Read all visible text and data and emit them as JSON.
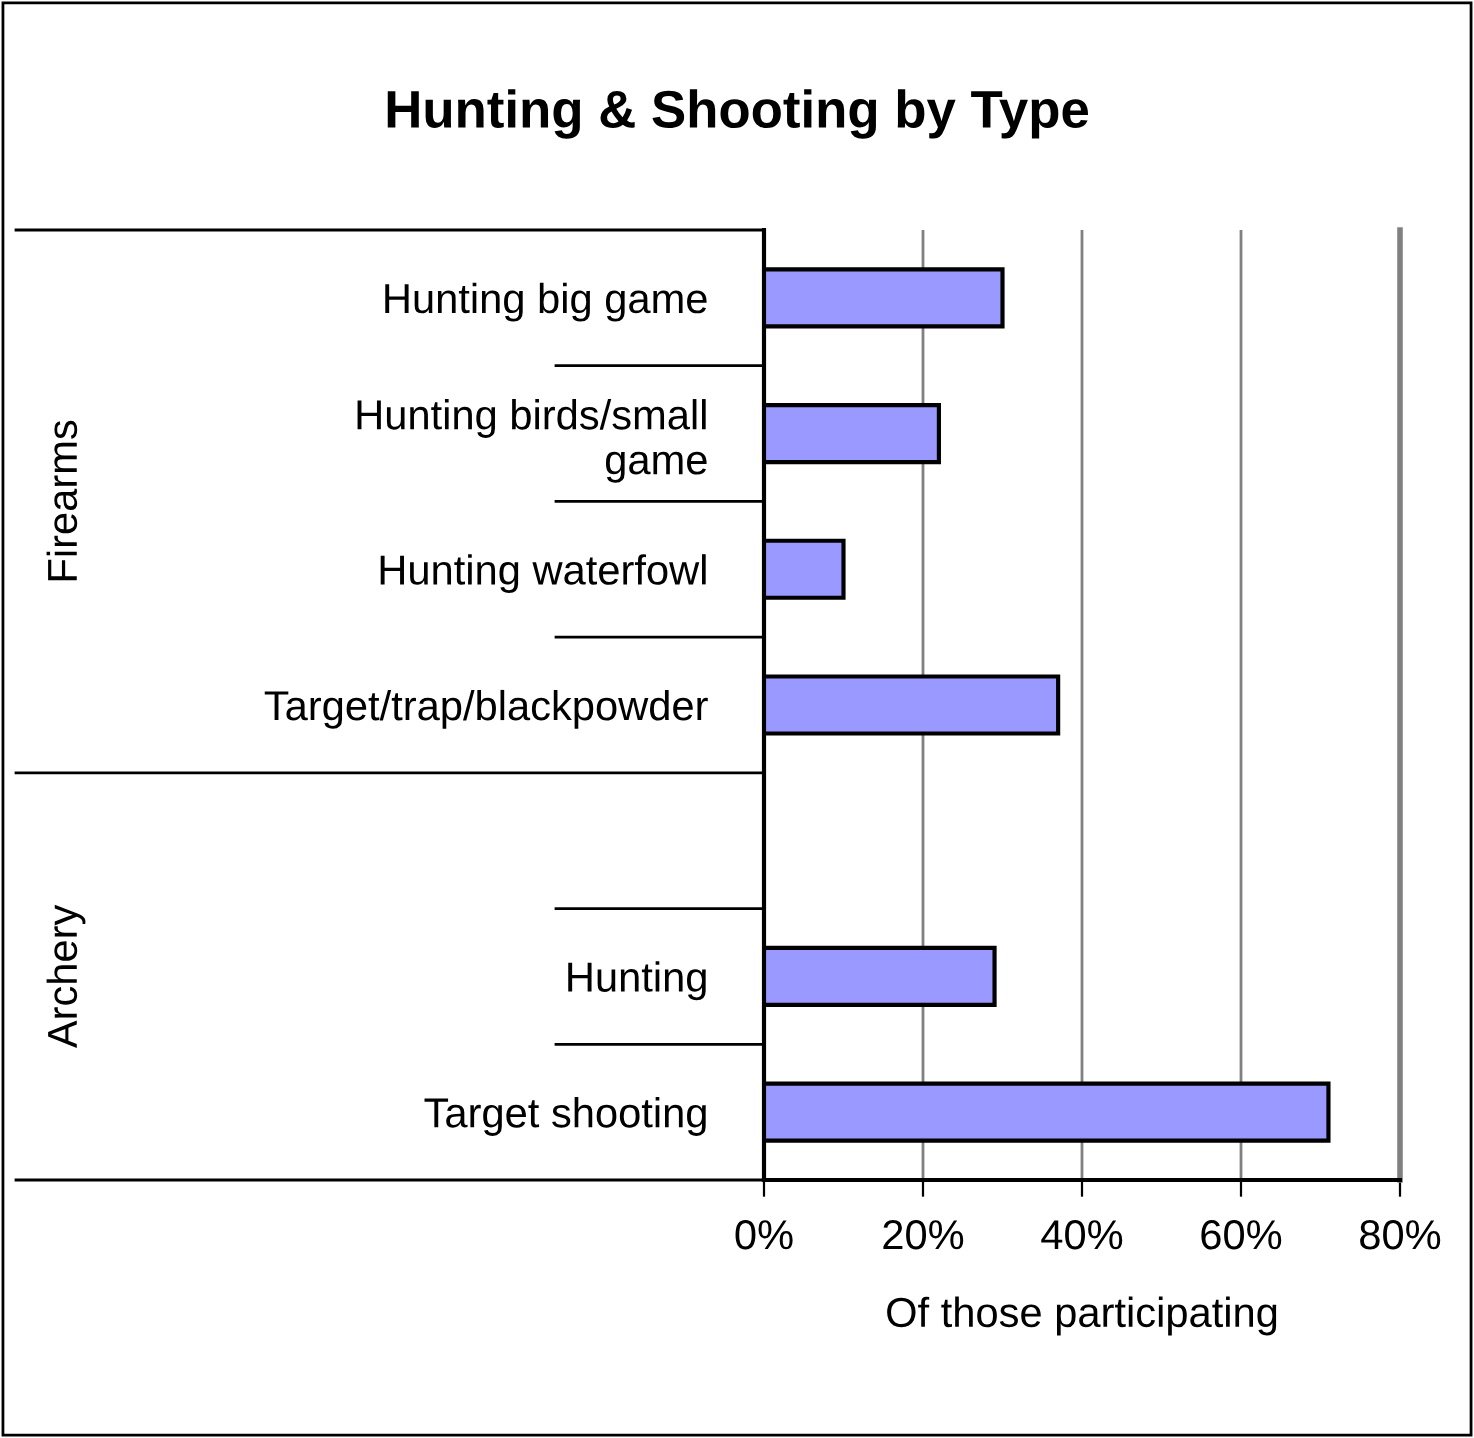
{
  "chart_data": {
    "type": "bar",
    "orientation": "horizontal",
    "title": "Hunting & Shooting by Type",
    "xlabel": "Of those participating",
    "categories": [
      "Hunting big game",
      "Hunting birds/small\ngame",
      "Hunting waterfowl",
      "Target/trap/blackpowder",
      null,
      "Hunting",
      "Target shooting"
    ],
    "values": [
      30,
      22,
      10,
      37,
      null,
      29,
      71
    ],
    "color": "#9999ff",
    "xlim": [
      0,
      80
    ],
    "xticks": [
      {
        "value": 0,
        "label": "0%"
      },
      {
        "value": 20,
        "label": "20%"
      },
      {
        "value": 40,
        "label": "40%"
      },
      {
        "value": 60,
        "label": "60%"
      },
      {
        "value": 80,
        "label": "80%"
      }
    ],
    "grid": "x",
    "legend": false,
    "annotations": [
      "Firearms",
      "Archery"
    ]
  }
}
